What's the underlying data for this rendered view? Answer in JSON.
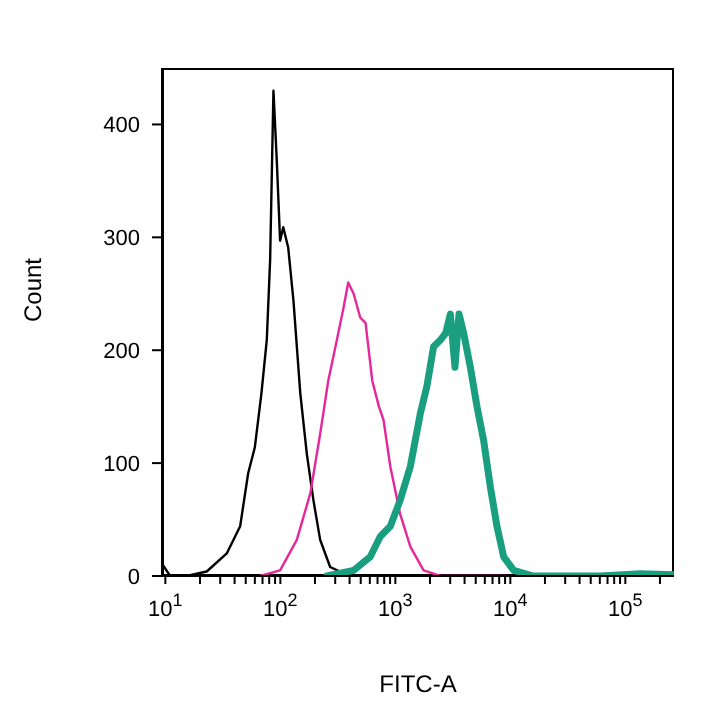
{
  "chart_data": {
    "type": "line",
    "xlabel": "FITC-A",
    "ylabel": "Count",
    "log": "x",
    "marker": "none",
    "line_style": "solid",
    "xlim": [
      9.35,
      265000
    ],
    "ylim": [
      0,
      450
    ],
    "xticks": [
      {
        "value": 10,
        "label": "10$^{1}$"
      },
      {
        "value": 20,
        "label": null
      },
      {
        "value": 30,
        "label": null
      },
      {
        "value": 40,
        "label": null
      },
      {
        "value": 50,
        "label": null
      },
      {
        "value": 60,
        "label": null
      },
      {
        "value": 70,
        "label": null
      },
      {
        "value": 80,
        "label": null
      },
      {
        "value": 90,
        "label": null
      },
      {
        "value": 100,
        "label": "10$^{2}$"
      },
      {
        "value": 200,
        "label": null
      },
      {
        "value": 300,
        "label": null
      },
      {
        "value": 400,
        "label": null
      },
      {
        "value": 500,
        "label": null
      },
      {
        "value": 600,
        "label": null
      },
      {
        "value": 700,
        "label": null
      },
      {
        "value": 800,
        "label": null
      },
      {
        "value": 900,
        "label": null
      },
      {
        "value": 1000,
        "label": "10$^{3}$"
      },
      {
        "value": 2000,
        "label": null
      },
      {
        "value": 3000,
        "label": null
      },
      {
        "value": 4000,
        "label": null
      },
      {
        "value": 5000,
        "label": null
      },
      {
        "value": 6000,
        "label": null
      },
      {
        "value": 7000,
        "label": null
      },
      {
        "value": 8000,
        "label": null
      },
      {
        "value": 9000,
        "label": null
      },
      {
        "value": 10000,
        "label": "10$^{4}$"
      },
      {
        "value": 20000,
        "label": null
      },
      {
        "value": 30000,
        "label": null
      },
      {
        "value": 40000,
        "label": null
      },
      {
        "value": 50000,
        "label": null
      },
      {
        "value": 60000,
        "label": null
      },
      {
        "value": 70000,
        "label": null
      },
      {
        "value": 80000,
        "label": null
      },
      {
        "value": 90000,
        "label": null
      },
      {
        "value": 100000,
        "label": "10$^{5}$"
      },
      {
        "value": 200000,
        "label": null
      }
    ],
    "yticks": [
      0,
      100,
      200,
      300,
      400
    ],
    "series": [
      {
        "color": "#000000",
        "x": [
          9.35,
          11,
          15.3,
          22.9,
          34.2,
          44.7,
          52.5,
          60,
          68.5,
          76.2,
          81.5,
          87.1,
          93.1,
          99.5,
          106,
          117,
          130,
          149,
          170,
          194,
          222,
          271,
          379,
          495
        ],
        "values": [
          11,
          0,
          0,
          4,
          20,
          44,
          91,
          114,
          162,
          209,
          280,
          430,
          368,
          297,
          309,
          291,
          244,
          162,
          108,
          67,
          32,
          8,
          1,
          0
        ]
      },
      {
        "color": "#e6279a",
        "x": [
          66.7,
          99.5,
          139,
          182,
          222,
          261,
          310,
          355,
          389,
          434,
          495,
          551,
          630,
          720,
          790,
          904,
          1100,
          1350,
          1760,
          2460,
          9350
        ],
        "values": [
          0,
          5,
          32,
          73,
          126,
          173,
          209,
          238,
          260,
          250,
          229,
          224,
          173,
          150,
          138,
          97,
          55,
          26,
          5,
          0,
          0
        ]
      },
      {
        "color": "#1a9e80",
        "x": [
          254,
          434,
          605,
          740,
          904,
          1100,
          1350,
          1650,
          1880,
          2150,
          2460,
          2740,
          3010,
          3300,
          3580,
          3930,
          4490,
          5130,
          5860,
          6700,
          7650,
          8750,
          10700,
          15800,
          60800,
          135000,
          265000
        ],
        "values": [
          0,
          5,
          17,
          35,
          44,
          67,
          97,
          144,
          168,
          203,
          209,
          215,
          232,
          185,
          232,
          215,
          185,
          150,
          120,
          79,
          44,
          17,
          5,
          0,
          0,
          2,
          1
        ]
      }
    ]
  }
}
